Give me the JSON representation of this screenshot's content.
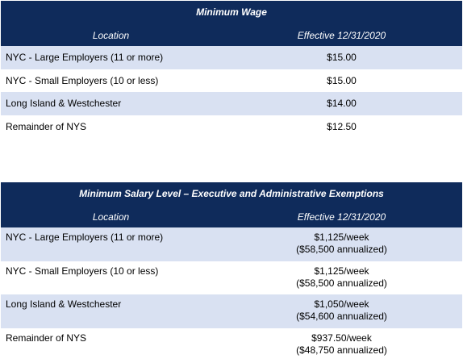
{
  "wage_table": {
    "title": "Minimum Wage",
    "col_location": "Location",
    "col_effective": "Effective 12/31/2020",
    "rows": [
      {
        "location": "NYC - Large Employers (11 or more)",
        "value": "$15.00"
      },
      {
        "location": "NYC - Small Employers (10 or less)",
        "value": "$15.00"
      },
      {
        "location": "Long Island & Westchester",
        "value": "$14.00"
      },
      {
        "location": "Remainder of NYS",
        "value": "$12.50"
      }
    ]
  },
  "salary_table": {
    "title": "Minimum Salary Level – Executive and Administrative Exemptions",
    "col_location": "Location",
    "col_effective": "Effective 12/31/2020",
    "rows": [
      {
        "location": "NYC - Large Employers (11 or more)",
        "weekly": "$1,125/week",
        "annual": "($58,500 annualized)"
      },
      {
        "location": "NYC - Small Employers (10 or less)",
        "weekly": "$1,125/week",
        "annual": "($58,500 annualized)"
      },
      {
        "location": "Long Island & Westchester",
        "weekly": "$1,050/week",
        "annual": "($54,600 annualized)"
      },
      {
        "location": "Remainder of NYS",
        "weekly": "$937.50/week",
        "annual": "($48,750 annualized)"
      }
    ]
  },
  "colors": {
    "header_bg": "#0f2b5b",
    "alt_row_bg": "#d9e1f2"
  }
}
